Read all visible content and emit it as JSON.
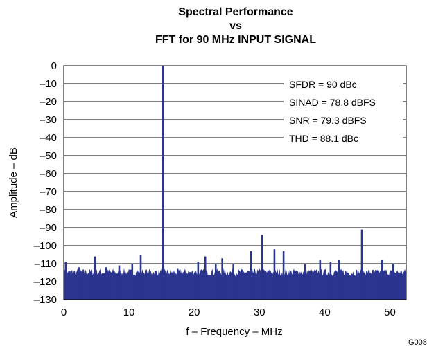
{
  "chart_data": {
    "type": "line",
    "title_lines": [
      "Spectral Performance",
      "vs",
      "FFT for 90 MHz INPUT SIGNAL"
    ],
    "xlabel": "f – Frequency – MHz",
    "ylabel": "Amplitude – dB",
    "xlim": [
      0,
      52.5
    ],
    "ylim": [
      -130,
      0
    ],
    "xticks": [
      0,
      10,
      20,
      30,
      40,
      50
    ],
    "yticks": [
      0,
      -10,
      -20,
      -30,
      -40,
      -50,
      -60,
      -70,
      -80,
      -90,
      -100,
      -110,
      -120,
      -130
    ],
    "ytick_labels": [
      "0",
      "–10",
      "–20",
      "–30",
      "–40",
      "–50",
      "–60",
      "–70",
      "–80",
      "–90",
      "–100",
      "–110",
      "–120",
      "–130"
    ],
    "grid": "horizontal",
    "noise_floor_dB": -115,
    "series_color": "#2b3590",
    "spurs": [
      {
        "x": 0.3,
        "y": -109
      },
      {
        "x": 2.3,
        "y": -112
      },
      {
        "x": 4.8,
        "y": -106
      },
      {
        "x": 6.5,
        "y": -112
      },
      {
        "x": 8.5,
        "y": -111
      },
      {
        "x": 10.5,
        "y": -110
      },
      {
        "x": 11.8,
        "y": -105
      },
      {
        "x": 15.2,
        "y": 0
      },
      {
        "x": 20.6,
        "y": -109
      },
      {
        "x": 21.7,
        "y": -106
      },
      {
        "x": 23.3,
        "y": -110
      },
      {
        "x": 24.3,
        "y": -107
      },
      {
        "x": 26.0,
        "y": -110
      },
      {
        "x": 28.7,
        "y": -103
      },
      {
        "x": 30.4,
        "y": -94
      },
      {
        "x": 32.3,
        "y": -102
      },
      {
        "x": 33.7,
        "y": -103
      },
      {
        "x": 37.0,
        "y": -110
      },
      {
        "x": 39.3,
        "y": -108
      },
      {
        "x": 40.9,
        "y": -109
      },
      {
        "x": 42.2,
        "y": -108
      },
      {
        "x": 45.7,
        "y": -91
      },
      {
        "x": 48.8,
        "y": -108
      },
      {
        "x": 50.5,
        "y": -110
      }
    ],
    "annotations": [
      "SFDR = 90 dBc",
      "SINAD = 78.8 dBFS",
      "SNR = 79.3 dBFS",
      "THD = 88.1 dBc"
    ]
  },
  "figure_id": "G008"
}
